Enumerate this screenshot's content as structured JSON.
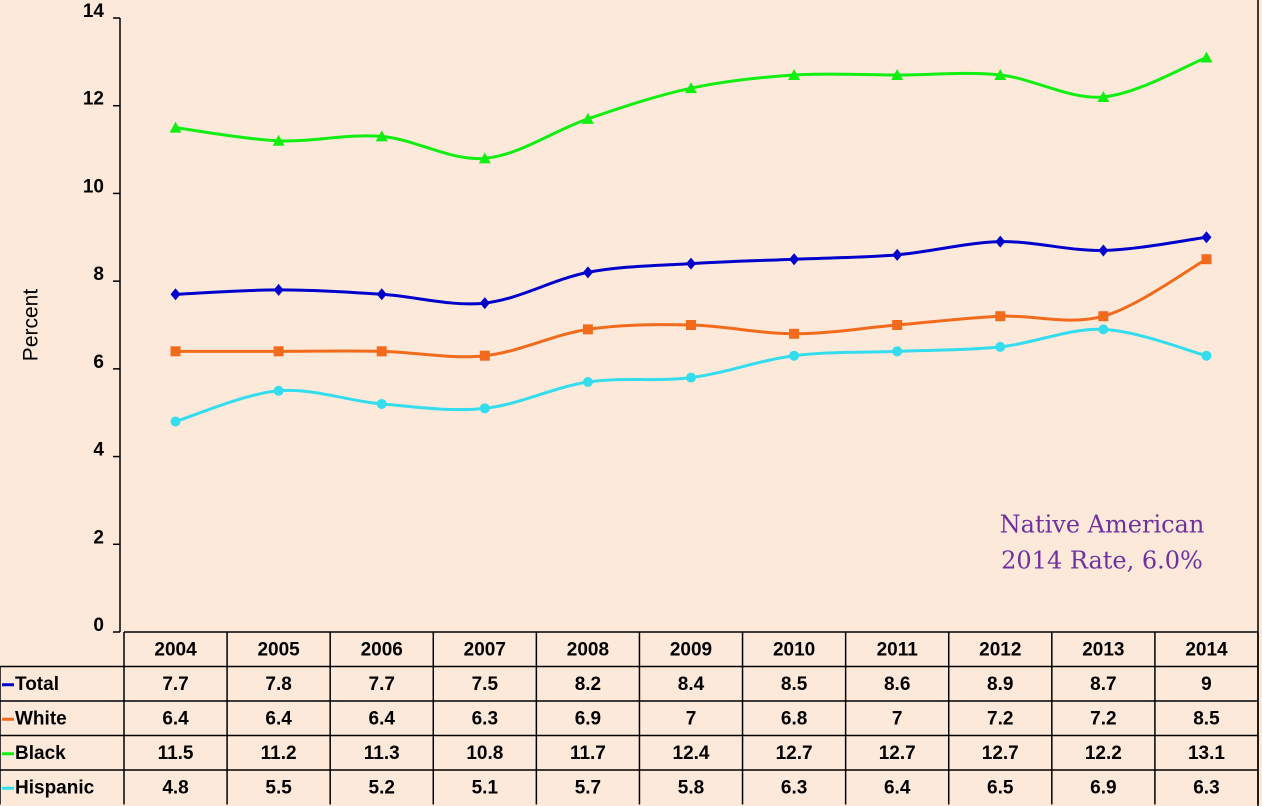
{
  "chart_data": {
    "type": "line",
    "y_label": "Percent",
    "categories": [
      "2004",
      "2005",
      "2006",
      "2007",
      "2008",
      "2009",
      "2010",
      "2011",
      "2012",
      "2013",
      "2014"
    ],
    "series": [
      {
        "name": "Total",
        "color": "#0000cc",
        "marker": "diamond",
        "values": [
          7.7,
          7.8,
          7.7,
          7.5,
          8.2,
          8.4,
          8.5,
          8.6,
          8.9,
          8.7,
          9
        ]
      },
      {
        "name": "White",
        "color": "#f26b1d",
        "marker": "square",
        "values": [
          6.4,
          6.4,
          6.4,
          6.3,
          6.9,
          7,
          6.8,
          7,
          7.2,
          7.2,
          8.5
        ]
      },
      {
        "name": "Black",
        "color": "#11ee11",
        "marker": "triangle",
        "values": [
          11.5,
          11.2,
          11.3,
          10.8,
          11.7,
          12.4,
          12.7,
          12.7,
          12.7,
          12.2,
          13.1
        ]
      },
      {
        "name": "Hispanic",
        "color": "#33ddee",
        "marker": "circle",
        "values": [
          4.8,
          5.5,
          5.2,
          5.1,
          5.7,
          5.8,
          6.3,
          6.4,
          6.5,
          6.9,
          6.3
        ]
      }
    ],
    "ylim": [
      0,
      14
    ],
    "yticks": [
      0,
      2,
      4,
      6,
      8,
      10,
      12,
      14
    ],
    "annotation": [
      "Native American",
      "2014 Rate,  6.0%"
    ],
    "data_table": true
  }
}
